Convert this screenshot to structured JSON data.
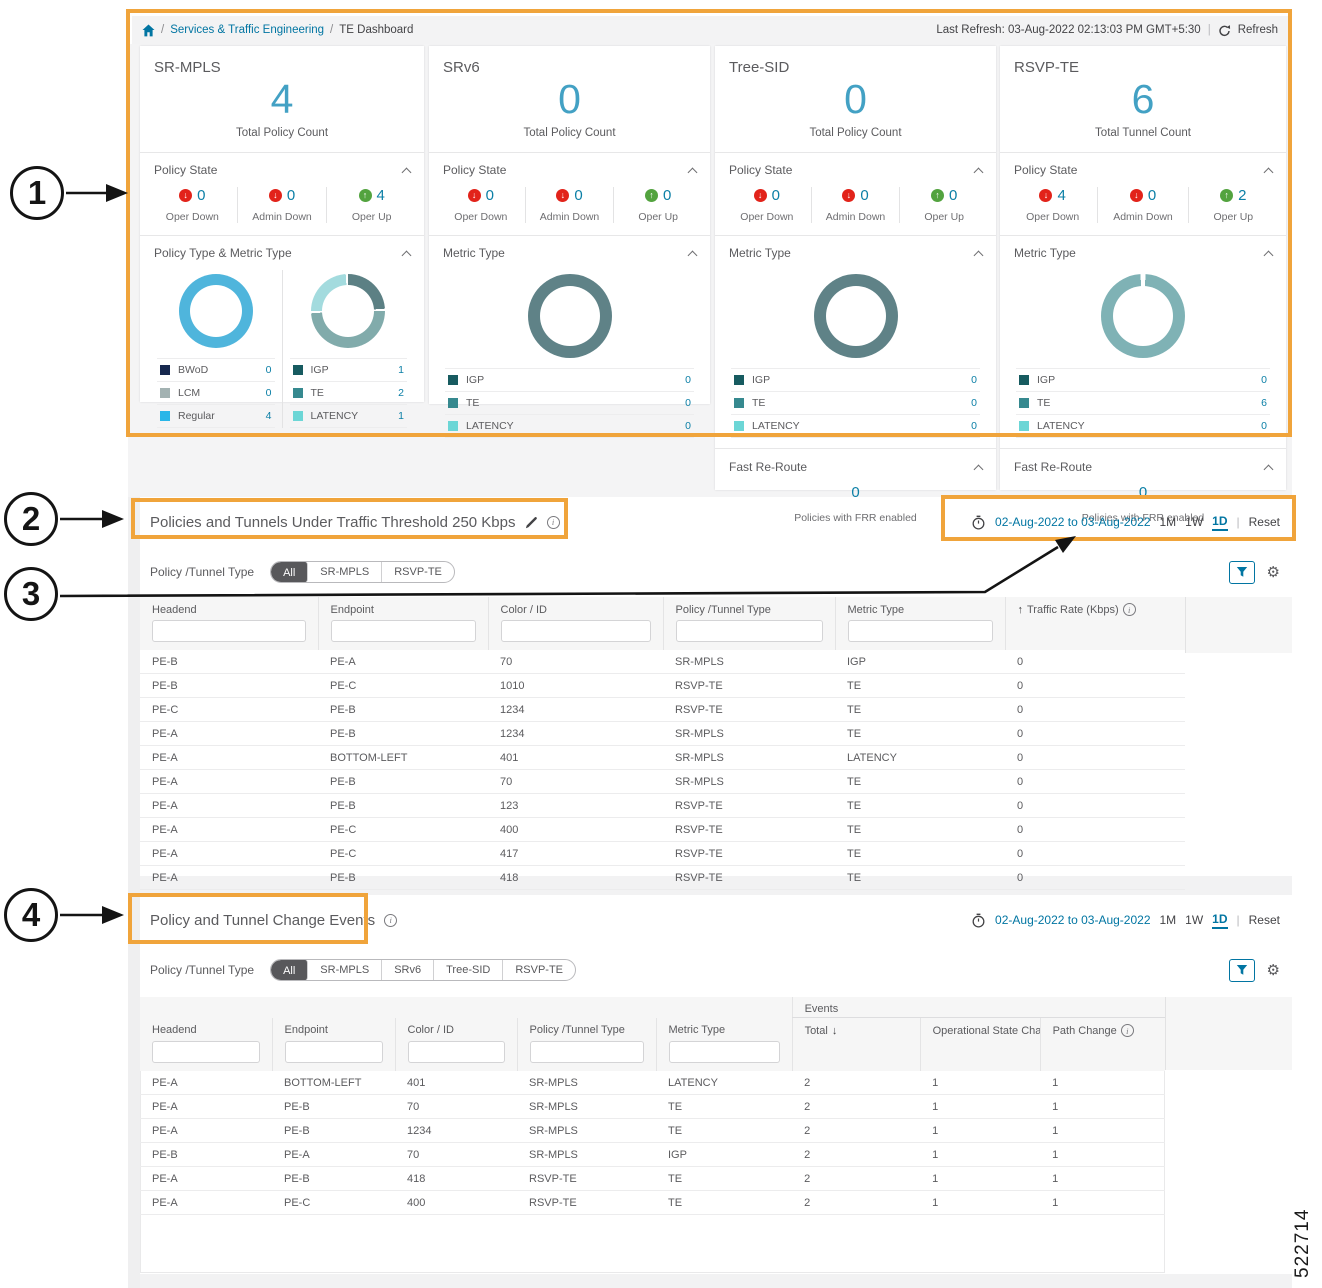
{
  "page": {
    "figure_number": "522714"
  },
  "annotations": {
    "callout1": "1",
    "callout2": "2",
    "callout3": "3",
    "callout4": "4",
    "box_color": "#f0a43b"
  },
  "icons": {
    "gear": "⚙",
    "sort_asc": "↑",
    "sort_desc": "↓",
    "info": "i",
    "arrow_down": "↓",
    "arrow_up": "↑"
  },
  "breadcrumb": {
    "sep1": "/",
    "section": "Services & Traffic Engineering",
    "sep2": "/",
    "page": "TE Dashboard"
  },
  "topbar": {
    "last_refresh": "Last Refresh: 03-Aug-2022 02:13:03 PM GMT+5:30",
    "pipe": "|",
    "refresh": "Refresh"
  },
  "cards": {
    "sr_mpls": {
      "title": "SR-MPLS",
      "count": "4",
      "count_label": "Total Policy Count",
      "policy_state_title": "Policy State",
      "oper_down": {
        "value": "0",
        "label": "Oper Down"
      },
      "admin_down": {
        "value": "0",
        "label": "Admin Down"
      },
      "oper_up": {
        "value": "4",
        "label": "Oper Up"
      },
      "section_title": "Policy Type & Metric Type",
      "policy_type": {
        "donut": [
          {
            "color": "#4fb5dc",
            "pct": 100
          }
        ],
        "legend": [
          {
            "label": "BWoD",
            "value": "0",
            "color": "#16284e"
          },
          {
            "label": "LCM",
            "value": "0",
            "color": "#a3b2b2"
          },
          {
            "label": "Regular",
            "value": "4",
            "color": "#29b6e8"
          }
        ]
      },
      "metric_type": {
        "donut": [
          {
            "color": "#5c8084",
            "pct": 24
          },
          {
            "color": "#ffffff",
            "pct": 1
          },
          {
            "color": "#81abab",
            "pct": 49
          },
          {
            "color": "#ffffff",
            "pct": 1
          },
          {
            "color": "#a3dbde",
            "pct": 24
          },
          {
            "color": "#ffffff",
            "pct": 1
          }
        ],
        "legend": [
          {
            "label": "IGP",
            "value": "1",
            "color": "#175b60"
          },
          {
            "label": "TE",
            "value": "2",
            "color": "#36898f"
          },
          {
            "label": "LATENCY",
            "value": "1",
            "color": "#6cd6d6"
          }
        ]
      }
    },
    "srv6": {
      "title": "SRv6",
      "count": "0",
      "count_label": "Total Policy Count",
      "policy_state_title": "Policy State",
      "oper_down": {
        "value": "0",
        "label": "Oper Down"
      },
      "admin_down": {
        "value": "0",
        "label": "Admin Down"
      },
      "oper_up": {
        "value": "0",
        "label": "Oper Up"
      },
      "section_title": "Metric Type",
      "metric_type": {
        "donut": [
          {
            "color": "#5f8287",
            "pct": 100
          }
        ],
        "legend": [
          {
            "label": "IGP",
            "value": "0",
            "color": "#175b60"
          },
          {
            "label": "TE",
            "value": "0",
            "color": "#36898f"
          },
          {
            "label": "LATENCY",
            "value": "0",
            "color": "#6cd6d6"
          }
        ]
      }
    },
    "tree_sid": {
      "title": "Tree-SID",
      "count": "0",
      "count_label": "Total Policy Count",
      "policy_state_title": "Policy State",
      "oper_down": {
        "value": "0",
        "label": "Oper Down"
      },
      "admin_down": {
        "value": "0",
        "label": "Admin Down"
      },
      "oper_up": {
        "value": "0",
        "label": "Oper Up"
      },
      "section_title": "Metric Type",
      "metric_type": {
        "donut": [
          {
            "color": "#5f8287",
            "pct": 100
          }
        ],
        "legend": [
          {
            "label": "IGP",
            "value": "0",
            "color": "#175b60"
          },
          {
            "label": "TE",
            "value": "0",
            "color": "#36898f"
          },
          {
            "label": "LATENCY",
            "value": "0",
            "color": "#6cd6d6"
          }
        ]
      },
      "frr": {
        "title": "Fast Re-Route",
        "value": "0",
        "label": "Policies with FRR enabled"
      }
    },
    "rsvp_te": {
      "title": "RSVP-TE",
      "count": "6",
      "count_label": "Total Tunnel Count",
      "policy_state_title": "Policy State",
      "oper_down": {
        "value": "4",
        "label": "Oper Down"
      },
      "admin_down": {
        "value": "0",
        "label": "Admin Down"
      },
      "oper_up": {
        "value": "2",
        "label": "Oper Up"
      },
      "section_title": "Metric Type",
      "metric_type": {
        "donut": [
          {
            "color": "#ffffff",
            "pct": 1
          },
          {
            "color": "#7fb2b5",
            "pct": 98
          },
          {
            "color": "#ffffff",
            "pct": 1
          }
        ],
        "legend": [
          {
            "label": "IGP",
            "value": "0",
            "color": "#175b60"
          },
          {
            "label": "TE",
            "value": "6",
            "color": "#36898f"
          },
          {
            "label": "LATENCY",
            "value": "0",
            "color": "#6cd6d6"
          }
        ]
      },
      "frr": {
        "title": "Fast Re-Route",
        "value": "0",
        "label": "Policies with FRR enabled"
      }
    }
  },
  "threshold_section": {
    "title": "Policies and Tunnels Under Traffic Threshold 250 Kbps",
    "date_range": "02-Aug-2022 to 03-Aug-2022",
    "range_1m": "1M",
    "range_1w": "1W",
    "range_1d": "1D",
    "active_range": "1D",
    "pipe": "|",
    "reset": "Reset",
    "filter_label": "Policy /Tunnel Type",
    "filters": [
      "All",
      "SR-MPLS",
      "RSVP-TE"
    ],
    "active_filter": "All",
    "table": {
      "col_headend": "Headend",
      "col_endpoint": "Endpoint",
      "col_color_id": "Color / ID",
      "col_policy_type": "Policy /Tunnel Type",
      "col_metric_type": "Metric Type",
      "col_traffic_rate": "Traffic Rate (Kbps)",
      "rows": [
        [
          "PE-B",
          "PE-A",
          "70",
          "SR-MPLS",
          "IGP",
          "0"
        ],
        [
          "PE-B",
          "PE-C",
          "1010",
          "RSVP-TE",
          "TE",
          "0"
        ],
        [
          "PE-C",
          "PE-B",
          "1234",
          "RSVP-TE",
          "TE",
          "0"
        ],
        [
          "PE-A",
          "PE-B",
          "1234",
          "SR-MPLS",
          "TE",
          "0"
        ],
        [
          "PE-A",
          "BOTTOM-LEFT",
          "401",
          "SR-MPLS",
          "LATENCY",
          "0"
        ],
        [
          "PE-A",
          "PE-B",
          "70",
          "SR-MPLS",
          "TE",
          "0"
        ],
        [
          "PE-A",
          "PE-B",
          "123",
          "RSVP-TE",
          "TE",
          "0"
        ],
        [
          "PE-A",
          "PE-C",
          "400",
          "RSVP-TE",
          "TE",
          "0"
        ],
        [
          "PE-A",
          "PE-C",
          "417",
          "RSVP-TE",
          "TE",
          "0"
        ],
        [
          "PE-A",
          "PE-B",
          "418",
          "RSVP-TE",
          "TE",
          "0"
        ]
      ]
    }
  },
  "events_section": {
    "title": "Policy and Tunnel Change Events",
    "date_range": "02-Aug-2022 to 03-Aug-2022",
    "range_1m": "1M",
    "range_1w": "1W",
    "range_1d": "1D",
    "active_range": "1D",
    "pipe": "|",
    "reset": "Reset",
    "filter_label": "Policy /Tunnel Type",
    "filters": [
      "All",
      "SR-MPLS",
      "SRv6",
      "Tree-SID",
      "RSVP-TE"
    ],
    "active_filter": "All",
    "table": {
      "col_headend": "Headend",
      "col_endpoint": "Endpoint",
      "col_color_id": "Color / ID",
      "col_policy_type": "Policy /Tunnel Type",
      "col_metric_type": "Metric Type",
      "events_group": "Events",
      "col_total": "Total",
      "col_oper_state": "Operational State Cha...",
      "col_path_change": "Path Change",
      "rows": [
        [
          "PE-A",
          "BOTTOM-LEFT",
          "401",
          "SR-MPLS",
          "LATENCY",
          "2",
          "1",
          "1"
        ],
        [
          "PE-A",
          "PE-B",
          "70",
          "SR-MPLS",
          "TE",
          "2",
          "1",
          "1"
        ],
        [
          "PE-A",
          "PE-B",
          "1234",
          "SR-MPLS",
          "TE",
          "2",
          "1",
          "1"
        ],
        [
          "PE-B",
          "PE-A",
          "70",
          "SR-MPLS",
          "IGP",
          "2",
          "1",
          "1"
        ],
        [
          "PE-A",
          "PE-B",
          "418",
          "RSVP-TE",
          "TE",
          "2",
          "1",
          "1"
        ],
        [
          "PE-A",
          "PE-C",
          "400",
          "RSVP-TE",
          "TE",
          "2",
          "1",
          "1"
        ]
      ]
    }
  }
}
